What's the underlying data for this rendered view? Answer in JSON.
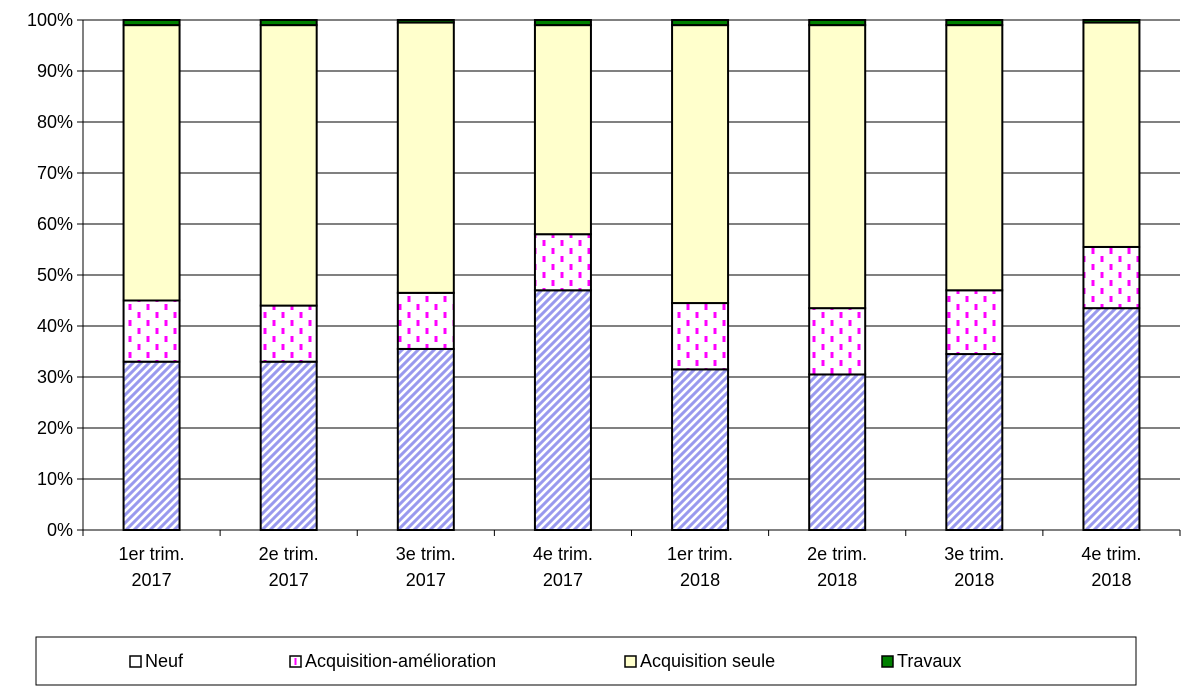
{
  "chart_data": {
    "type": "bar",
    "stacked": true,
    "percent": true,
    "categories": [
      [
        "1er trim.",
        "2017"
      ],
      [
        "2e trim.",
        "2017"
      ],
      [
        "3e trim.",
        "2017"
      ],
      [
        "4e trim.",
        "2017"
      ],
      [
        "1er trim.",
        "2018"
      ],
      [
        "2e trim.",
        "2018"
      ],
      [
        "3e trim.",
        "2018"
      ],
      [
        "4e trim.",
        "2018"
      ]
    ],
    "series": [
      {
        "name": "Neuf",
        "values": [
          33,
          33,
          35.5,
          47,
          31.5,
          30.5,
          34.5,
          43.5
        ],
        "color": "#9999ee",
        "pattern": "diagonal-hatch"
      },
      {
        "name": "Acquisition-amélioration",
        "values": [
          12,
          11,
          11,
          11,
          13,
          13,
          12.5,
          12
        ],
        "color": "#ff00ff",
        "pattern": "vertical-dashes"
      },
      {
        "name": "Acquisition seule",
        "values": [
          54,
          55,
          53,
          41,
          54.5,
          55.5,
          52,
          44
        ],
        "color": "#ffffcc",
        "pattern": "solid"
      },
      {
        "name": "Travaux",
        "values": [
          1,
          1,
          0.5,
          1,
          1,
          1,
          1,
          0.5
        ],
        "color": "#008000",
        "pattern": "solid"
      }
    ],
    "yticks": [
      "0%",
      "10%",
      "20%",
      "30%",
      "40%",
      "50%",
      "60%",
      "70%",
      "80%",
      "90%",
      "100%"
    ],
    "ylim": [
      0,
      100
    ],
    "grid": true,
    "legend_position": "bottom"
  }
}
